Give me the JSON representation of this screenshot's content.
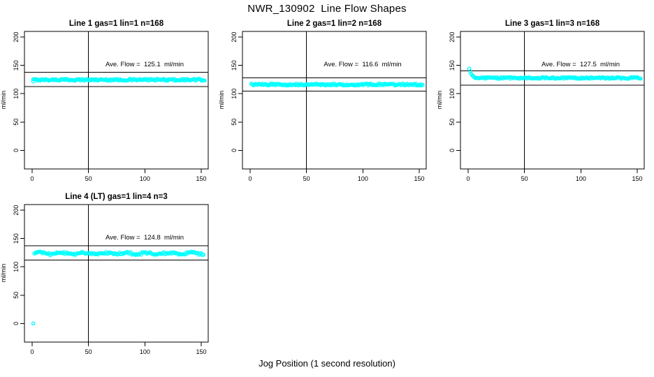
{
  "chart_data": {
    "type": "scatter",
    "title": "NWR_130902  Line Flow Shapes",
    "xlabel": "Jog Position (1 second resolution)",
    "ylabel": "ml/min",
    "point_color": "#00FFFF",
    "axis_color": "#000000",
    "xlim": [
      -6.8,
      156.2
    ],
    "ylim": [
      -33,
      210
    ],
    "xticks": [
      0,
      50,
      100,
      150
    ],
    "yticks": [
      0,
      50,
      100,
      150,
      200
    ],
    "grid": false,
    "legend": "none",
    "panels": [
      {
        "title": "Line 1 gas=1 lin=1 n=168",
        "n": 168,
        "ave_flow": {
          "label": "Ave. Flow =",
          "value": "125.1",
          "unit": "ml/min"
        },
        "ref_lines": {
          "upper": 137.6,
          "lower": 112.6
        },
        "vline": 50,
        "series": {
          "x_start": 1,
          "x_end": 153,
          "points_n": 168,
          "level": 124.6,
          "jitter": 1.6,
          "wave_amp": 0,
          "lead_points": [
            [
              1,
              121.8
            ]
          ]
        }
      },
      {
        "title": "Line 2 gas=1 lin=2 n=168",
        "n": 168,
        "ave_flow": {
          "label": "Ave. Flow =",
          "value": "116.6",
          "unit": "ml/min"
        },
        "ref_lines": {
          "upper": 128.3,
          "lower": 104.9
        },
        "vline": 50,
        "series": {
          "x_start": 1,
          "x_end": 153,
          "points_n": 168,
          "level": 116.2,
          "jitter": 1.7,
          "wave_amp": 0,
          "lead_points": []
        }
      },
      {
        "title": "Line 3 gas=1 lin=3 n=168",
        "n": 168,
        "ave_flow": {
          "label": "Ave. Flow =",
          "value": "127.5",
          "unit": "ml/min"
        },
        "ref_lines": {
          "upper": 140.3,
          "lower": 114.8
        },
        "vline": 50,
        "series": {
          "x_start": 6.4,
          "x_end": 153,
          "points_n": 162,
          "level": 127.8,
          "jitter": 1.4,
          "wave_amp": 0,
          "lead_points": [
            [
              1,
              144.5
            ],
            [
              1.9,
              139
            ],
            [
              2.8,
              135
            ],
            [
              3.7,
              132.5
            ],
            [
              4.6,
              130.5
            ],
            [
              5.5,
              129.3
            ]
          ]
        }
      },
      {
        "title": "Line 4 (LT) gas=1 lin=4 n=3",
        "n": 3,
        "ave_flow": {
          "label": "Ave. Flow =",
          "value": "124.8",
          "unit": "ml/min"
        },
        "ref_lines": {
          "upper": 137.3,
          "lower": 112.3
        },
        "vline": 50,
        "series": {
          "x_start": 2,
          "x_end": 152,
          "points_n": 150,
          "level": 123.8,
          "jitter": 2.0,
          "wave_amp": 1.3,
          "lead_points": [
            [
              1,
              0
            ]
          ]
        }
      }
    ]
  }
}
